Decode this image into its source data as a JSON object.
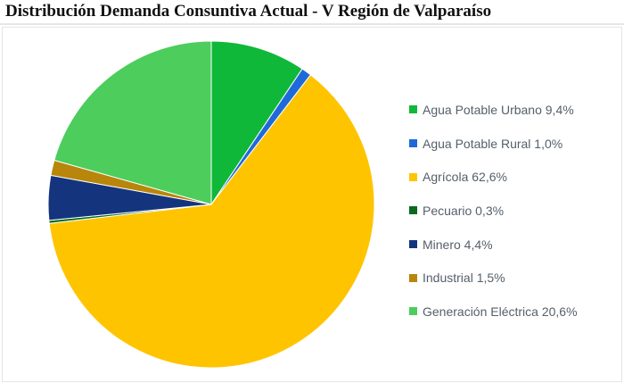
{
  "chart_data": {
    "type": "pie",
    "title": "Distribución Demanda Consuntiva Actual - V Región de Valparaíso",
    "legend_position": "right",
    "slices": [
      {
        "label": "Agua Potable Urbano 9,4%",
        "name": "Agua Potable Urbano",
        "value": 9.4,
        "color": "#10b83a"
      },
      {
        "label": "Agua Potable Rural 1,0%",
        "name": "Agua Potable Rural",
        "value": 1.0,
        "color": "#1f6ad8"
      },
      {
        "label": "Agrícola 62,6%",
        "name": "Agrícola",
        "value": 62.6,
        "color": "#ffc400"
      },
      {
        "label": "Pecuario 0,3%",
        "name": "Pecuario",
        "value": 0.3,
        "color": "#0b6a1e"
      },
      {
        "label": "Minero 4,4%",
        "name": "Minero",
        "value": 4.4,
        "color": "#14357e"
      },
      {
        "label": "Industrial 1,5%",
        "name": "Industrial",
        "value": 1.5,
        "color": "#b8860b"
      },
      {
        "label": "Generación Eléctrica 20,6%",
        "name": "Generación Eléctrica",
        "value": 20.6,
        "color": "#4ccd5c"
      }
    ]
  }
}
